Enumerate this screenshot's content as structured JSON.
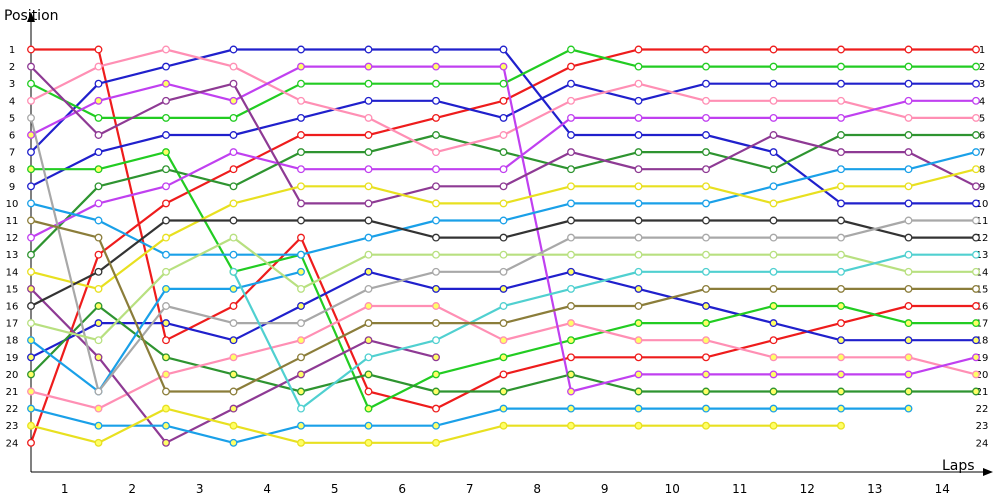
{
  "chart_data": {
    "type": "line",
    "title": "",
    "xlabel": "Laps",
    "ylabel": "Position",
    "x_tick_labels": [
      "1",
      "2",
      "3",
      "4",
      "5",
      "6",
      "7",
      "8",
      "9",
      "10",
      "11",
      "12",
      "13",
      "14"
    ],
    "y_tick_labels": [
      "1",
      "2",
      "3",
      "4",
      "5",
      "6",
      "7",
      "8",
      "9",
      "10",
      "11",
      "12",
      "13",
      "14",
      "15",
      "16",
      "17",
      "18",
      "19",
      "20",
      "21",
      "22",
      "23",
      "24"
    ],
    "ylim": [
      1,
      24
    ],
    "y_inverted": true,
    "grid": false,
    "legend": "none",
    "x": [
      0,
      1,
      2,
      3,
      4,
      5,
      6,
      7,
      8,
      9,
      10,
      11,
      12,
      13,
      14
    ],
    "series": [
      {
        "color": "#ee1c1c",
        "marker": "#ffffff",
        "values": [
          1,
          1,
          18,
          16,
          12,
          21,
          22,
          20,
          19,
          19,
          19,
          18,
          17,
          16,
          16
        ]
      },
      {
        "color": "#ee1c1c",
        "marker": "#ffffff",
        "values": [
          24,
          13,
          10,
          8,
          6,
          6,
          5,
          4,
          2,
          1,
          1,
          1,
          1,
          1,
          1
        ]
      },
      {
        "color": "#2020cc",
        "marker": "#ffffff",
        "values": [
          7,
          3,
          2,
          1,
          1,
          1,
          1,
          1,
          6,
          6,
          6,
          7,
          10,
          10,
          10
        ]
      },
      {
        "color": "#2020cc",
        "marker": "#ffffff",
        "values": [
          9,
          7,
          6,
          6,
          5,
          4,
          4,
          5,
          3,
          4,
          3,
          3,
          3,
          3,
          3
        ]
      },
      {
        "color": "#2020cc",
        "marker": "#ffff66",
        "values": [
          19,
          17,
          17,
          18,
          16,
          14,
          15,
          15,
          14,
          15,
          16,
          17,
          18,
          18,
          18
        ]
      },
      {
        "color": "#22cc22",
        "marker": "#ffffff",
        "values": [
          3,
          5,
          5,
          5,
          3,
          3,
          3,
          3,
          1,
          2,
          2,
          2,
          2,
          2,
          2
        ]
      },
      {
        "color": "#22cc22",
        "marker": "#ffff66",
        "values": [
          8,
          8,
          7,
          14,
          13,
          22,
          20,
          19,
          18,
          17,
          17,
          16,
          16,
          17,
          17
        ]
      },
      {
        "color": "#2e9430",
        "marker": "#ffffff",
        "values": [
          13,
          9,
          8,
          9,
          7,
          7,
          6,
          7,
          8,
          7,
          7,
          8,
          6,
          6,
          6
        ]
      },
      {
        "color": "#2e9430",
        "marker": "#ffff66",
        "values": [
          20,
          16,
          19,
          20,
          21,
          20,
          21,
          21,
          20,
          21,
          21,
          21,
          21,
          21,
          21
        ]
      },
      {
        "color": "#ff8fb4",
        "marker": "#ffffff",
        "values": [
          4,
          2,
          1,
          2,
          4,
          5,
          7,
          6,
          4,
          3,
          4,
          4,
          4,
          5,
          5
        ]
      },
      {
        "color": "#ff8fb4",
        "marker": "#ffff66",
        "values": [
          21,
          22,
          20,
          19,
          18,
          16,
          16,
          18,
          17,
          18,
          18,
          19,
          19,
          19,
          20
        ]
      },
      {
        "color": "#c040f0",
        "marker": "#ffffff",
        "values": [
          12,
          10,
          9,
          7,
          8,
          8,
          8,
          8,
          5,
          5,
          5,
          5,
          5,
          4,
          4
        ]
      },
      {
        "color": "#c040f0",
        "marker": "#ffff66",
        "values": [
          6,
          4,
          3,
          4,
          2,
          2,
          2,
          2,
          21,
          20,
          20,
          20,
          20,
          20,
          19
        ]
      },
      {
        "color": "#8e3a94",
        "marker": "#ffffff",
        "values": [
          2,
          6,
          4,
          3,
          10,
          10,
          9,
          9,
          7,
          8,
          8,
          6,
          7,
          7,
          9
        ]
      },
      {
        "color": "#8e3a94",
        "marker": "#ffff66",
        "values": [
          15,
          19,
          24,
          22,
          20,
          18,
          19,
          null,
          null,
          null,
          null,
          null,
          null,
          null,
          null
        ]
      },
      {
        "color": "#1aa0e8",
        "marker": "#ffffff",
        "values": [
          10,
          11,
          13,
          13,
          13,
          12,
          11,
          11,
          10,
          10,
          10,
          9,
          8,
          8,
          7
        ]
      },
      {
        "color": "#1aa0e8",
        "marker": "#ffff66",
        "values": [
          22,
          23,
          23,
          24,
          23,
          23,
          23,
          22,
          22,
          22,
          22,
          22,
          22,
          22,
          null
        ]
      },
      {
        "color": "#1aa0e8",
        "marker": "#ffff66",
        "values": [
          18,
          21,
          15,
          15,
          14,
          null,
          null,
          null,
          null,
          null,
          null,
          null,
          null,
          null,
          null
        ]
      },
      {
        "color": "#e8e020",
        "marker": "#ffffff",
        "values": [
          14,
          15,
          12,
          10,
          9,
          9,
          10,
          10,
          9,
          9,
          9,
          10,
          9,
          9,
          8
        ]
      },
      {
        "color": "#e8e020",
        "marker": "#ffff66",
        "values": [
          23,
          24,
          22,
          23,
          24,
          24,
          24,
          23,
          23,
          23,
          23,
          23,
          23,
          null,
          null
        ]
      },
      {
        "color": "#333333",
        "marker": "#ffffff",
        "values": [
          16,
          14,
          11,
          11,
          11,
          11,
          12,
          12,
          11,
          11,
          11,
          11,
          11,
          12,
          12
        ]
      },
      {
        "color": "#a8a8a8",
        "marker": "#ffffff",
        "values": [
          5,
          21,
          16,
          17,
          17,
          15,
          14,
          14,
          12,
          12,
          12,
          12,
          12,
          11,
          11
        ]
      },
      {
        "color": "#b8e080",
        "marker": "#ffffff",
        "values": [
          17,
          18,
          14,
          12,
          15,
          13,
          13,
          13,
          13,
          13,
          13,
          13,
          13,
          14,
          14
        ]
      },
      {
        "color": "#50d0d0",
        "marker": "#ffffff",
        "values": [
          null,
          null,
          null,
          14,
          22,
          19,
          18,
          16,
          15,
          14,
          14,
          14,
          14,
          13,
          13
        ]
      },
      {
        "color": "#8b7d3a",
        "marker": "#ffffff",
        "values": [
          11,
          12,
          21,
          21,
          19,
          17,
          17,
          17,
          16,
          16,
          15,
          15,
          15,
          15,
          15
        ]
      }
    ]
  }
}
